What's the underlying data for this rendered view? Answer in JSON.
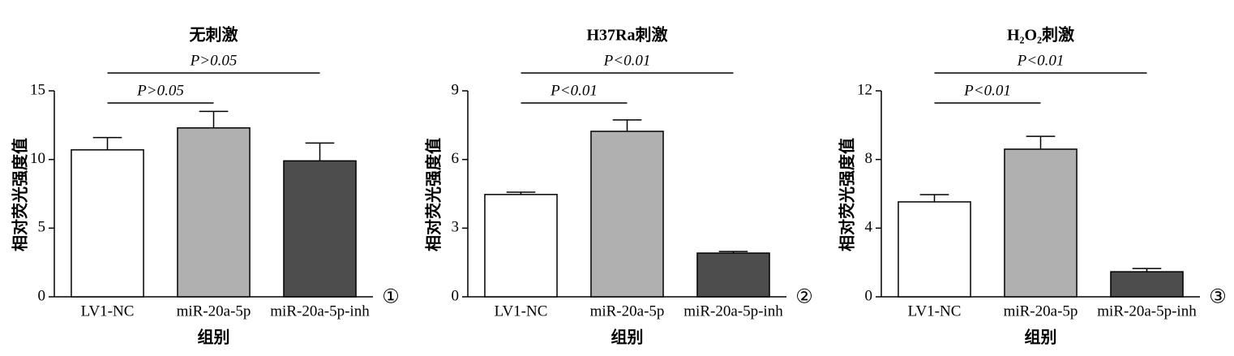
{
  "chart_data": [
    {
      "type": "bar",
      "title": "无刺激",
      "xlabel": "组别",
      "ylabel": "相对荧光强度值",
      "panel_label": "①",
      "categories": [
        "LV1-NC",
        "miR-20a-5p",
        "miR-20a-5p-inh"
      ],
      "values": [
        10.7,
        12.3,
        9.9
      ],
      "errors": [
        0.9,
        1.2,
        1.3
      ],
      "colors": [
        "#ffffff",
        "#b0b0b0",
        "#4d4d4d"
      ],
      "ylim": [
        0,
        15
      ],
      "yticks": [
        0,
        5,
        10,
        15
      ],
      "annotations": [
        {
          "text": "P>0.05",
          "pair": [
            0,
            1
          ]
        },
        {
          "text": "P>0.05",
          "pair": [
            0,
            2
          ]
        }
      ]
    },
    {
      "type": "bar",
      "title": "H37Ra刺激",
      "xlabel": "组别",
      "ylabel": "相对荧光强度值",
      "panel_label": "②",
      "categories": [
        "LV1-NC",
        "miR-20a-5p",
        "miR-20a-5p-inh"
      ],
      "values": [
        4.47,
        7.23,
        1.91
      ],
      "errors": [
        0.1,
        0.5,
        0.07
      ],
      "colors": [
        "#ffffff",
        "#b0b0b0",
        "#4d4d4d"
      ],
      "ylim": [
        0,
        9
      ],
      "yticks": [
        0,
        3,
        6,
        9
      ],
      "annotations": [
        {
          "text": "P<0.01",
          "pair": [
            0,
            1
          ]
        },
        {
          "text": "P<0.01",
          "pair": [
            0,
            2
          ]
        }
      ]
    },
    {
      "type": "bar",
      "title": "H₂O₂刺激",
      "xlabel": "组别",
      "ylabel": "相对荧光强度值",
      "panel_label": "③",
      "categories": [
        "LV1-NC",
        "miR-20a-5p",
        "miR-20a-5p-inh"
      ],
      "values": [
        5.53,
        8.6,
        1.46
      ],
      "errors": [
        0.42,
        0.75,
        0.19
      ],
      "colors": [
        "#ffffff",
        "#b0b0b0",
        "#4d4d4d"
      ],
      "ylim": [
        0,
        12
      ],
      "yticks": [
        0,
        4,
        8,
        12
      ],
      "annotations": [
        {
          "text": "P<0.01",
          "pair": [
            0,
            1
          ]
        },
        {
          "text": "P<0.01",
          "pair": [
            0,
            2
          ]
        }
      ]
    }
  ]
}
